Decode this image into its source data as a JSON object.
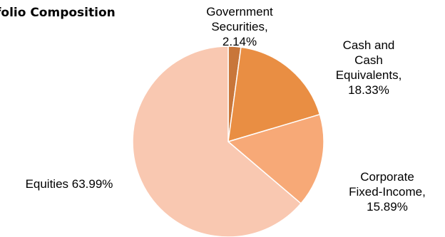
{
  "chart_data": {
    "type": "pie",
    "title": "folio Composition",
    "slices": [
      {
        "name": "Government Securities",
        "value": 2.14,
        "color": "#c8763a",
        "label_lines": [
          "Government",
          "Securities,",
          "2.14%"
        ]
      },
      {
        "name": "Cash and Cash Equivalents",
        "value": 18.33,
        "color": "#e98e43",
        "label_lines": [
          "Cash and",
          "Cash",
          "Equivalents,",
          "18.33%"
        ]
      },
      {
        "name": "Corporate Fixed-Income",
        "value": 15.89,
        "color": "#f7a977",
        "label_lines": [
          "Corporate",
          "Fixed-Income,",
          "15.89%"
        ]
      },
      {
        "name": "Equities",
        "value": 63.99,
        "color": "#f9c8b1",
        "label_lines": [
          "Equities 63.99%"
        ]
      }
    ],
    "start_angle_deg": 0,
    "direction": "clockwise"
  }
}
